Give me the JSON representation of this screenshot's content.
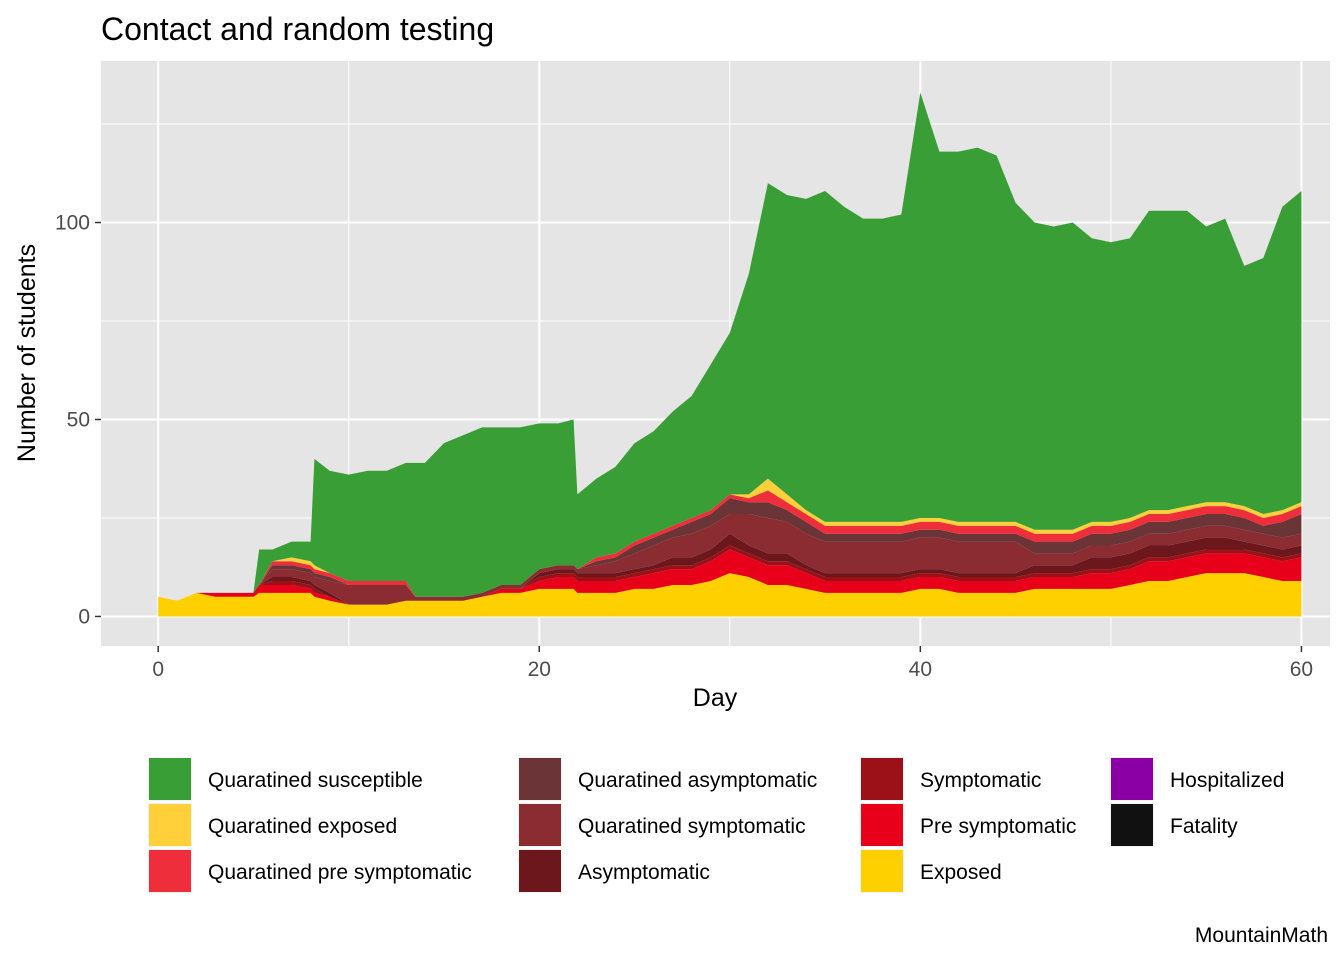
{
  "chart_data": {
    "type": "area",
    "stacked": true,
    "title": "Contact and random testing",
    "xlabel": "Day",
    "ylabel": "Number of students",
    "caption": "MountainMath",
    "xlim": [
      -3,
      61.5
    ],
    "ylim": [
      -7.5,
      141
    ],
    "x_ticks": [
      0,
      20,
      40,
      60
    ],
    "y_ticks": [
      0,
      50,
      100
    ],
    "x_minor_ticks": [
      10,
      30,
      50
    ],
    "y_minor_ticks": [
      25,
      75,
      125
    ],
    "grid": true,
    "legend_position": "bottom",
    "x": [
      0,
      1,
      2,
      3,
      4,
      5,
      5.3,
      6,
      7,
      8,
      8.2,
      9,
      10,
      11,
      12,
      13,
      13.5,
      14,
      15,
      16,
      17,
      18,
      19,
      20,
      21,
      21.8,
      22,
      23,
      24,
      25,
      26,
      27,
      28,
      29,
      30,
      31,
      32,
      33,
      34,
      35,
      36,
      37,
      38,
      39,
      40,
      41,
      42,
      43,
      44,
      45,
      46,
      47,
      48,
      49,
      50,
      51,
      52,
      53,
      54,
      55,
      56,
      57,
      58,
      59,
      60
    ],
    "series": [
      {
        "name": "Exposed",
        "color": "#FFD000",
        "values": [
          5,
          4,
          6,
          5,
          5,
          5,
          6,
          6,
          6,
          6,
          5,
          4,
          3,
          3,
          3,
          4,
          4,
          4,
          4,
          4,
          5,
          6,
          6,
          7,
          7,
          7,
          6,
          6,
          6,
          7,
          7,
          8,
          8,
          9,
          11,
          10,
          8,
          8,
          7,
          6,
          6,
          6,
          6,
          6,
          7,
          7,
          6,
          6,
          6,
          6,
          7,
          7,
          7,
          7,
          7,
          8,
          9,
          9,
          10,
          11,
          11,
          11,
          10,
          9,
          9
        ]
      },
      {
        "name": "Pre symptomatic",
        "color": "#E8001B",
        "values": [
          0,
          0,
          0,
          1,
          1,
          1,
          2,
          2,
          2,
          1,
          1,
          1,
          0,
          0,
          0,
          0,
          0,
          0,
          0,
          0,
          0,
          1,
          1,
          2,
          3,
          3,
          3,
          3,
          3,
          3,
          4,
          4,
          4,
          5,
          6,
          5,
          5,
          5,
          4,
          3,
          3,
          3,
          3,
          3,
          3,
          3,
          3,
          3,
          3,
          3,
          3,
          3,
          3,
          4,
          4,
          4,
          5,
          5,
          5,
          5,
          5,
          5,
          5,
          5,
          6
        ]
      },
      {
        "name": "Symptomatic",
        "color": "#9B1117",
        "values": [
          0,
          0,
          0,
          0,
          0,
          0,
          0,
          1,
          1,
          1,
          1,
          0,
          0,
          0,
          0,
          0,
          0,
          0,
          0,
          0,
          0,
          0,
          0,
          1,
          1,
          1,
          1,
          1,
          1,
          1,
          1,
          1,
          1,
          1,
          1,
          1,
          1,
          1,
          1,
          1,
          1,
          1,
          1,
          1,
          1,
          1,
          1,
          1,
          1,
          1,
          1,
          1,
          1,
          1,
          1,
          1,
          1,
          1,
          1,
          1,
          1,
          1,
          1,
          1,
          1
        ]
      },
      {
        "name": "Asymptomatic",
        "color": "#6B171C",
        "values": [
          0,
          0,
          0,
          0,
          0,
          0,
          0,
          1,
          1,
          1,
          1,
          1,
          0,
          0,
          0,
          0,
          0,
          0,
          0,
          0,
          0,
          0,
          0,
          1,
          1,
          1,
          1,
          1,
          1,
          1,
          1,
          2,
          2,
          2,
          3,
          2,
          2,
          2,
          1,
          1,
          1,
          1,
          1,
          1,
          1,
          1,
          1,
          1,
          1,
          1,
          2,
          2,
          2,
          3,
          3,
          3,
          3,
          3,
          3,
          3,
          3,
          2,
          2,
          2,
          2
        ]
      },
      {
        "name": "Quaratined symptomatic",
        "color": "#8B2C33",
        "values": [
          0,
          0,
          0,
          0,
          0,
          0,
          0,
          2,
          2,
          2,
          2,
          3,
          5,
          5,
          5,
          4,
          1,
          1,
          1,
          1,
          1,
          1,
          1,
          1,
          1,
          1,
          1,
          2,
          3,
          4,
          5,
          5,
          6,
          6,
          5,
          8,
          9,
          8,
          8,
          8,
          8,
          8,
          8,
          8,
          8,
          8,
          8,
          8,
          8,
          8,
          3,
          3,
          3,
          3,
          3,
          3,
          3,
          3,
          3,
          3,
          3,
          3,
          3,
          3,
          3
        ]
      },
      {
        "name": "Quaratined asymptomatic",
        "color": "#6B3436",
        "values": [
          0,
          0,
          0,
          0,
          0,
          0,
          0,
          1,
          1,
          1,
          1,
          1,
          0,
          0,
          0,
          0,
          0,
          0,
          0,
          0,
          0,
          0,
          0,
          0,
          0,
          0,
          0,
          1,
          1,
          2,
          2,
          2,
          3,
          3,
          4,
          3,
          4,
          3,
          3,
          2,
          2,
          2,
          2,
          2,
          2,
          2,
          2,
          2,
          2,
          2,
          3,
          3,
          3,
          3,
          3,
          3,
          3,
          3,
          3,
          3,
          3,
          3,
          2,
          4,
          5
        ]
      },
      {
        "name": "Quaratined pre symptomatic",
        "color": "#EE2E3A",
        "values": [
          0,
          0,
          0,
          0,
          0,
          0,
          0,
          1,
          1,
          1,
          1,
          1,
          1,
          1,
          1,
          1,
          0,
          0,
          0,
          0,
          0,
          0,
          0,
          0,
          0,
          0,
          0,
          1,
          1,
          1,
          1,
          1,
          1,
          1,
          1,
          1,
          3,
          2,
          2,
          2,
          2,
          2,
          2,
          2,
          2,
          2,
          2,
          2,
          2,
          2,
          2,
          2,
          2,
          2,
          2,
          2,
          2,
          2,
          2,
          2,
          2,
          2,
          2,
          2,
          2
        ]
      },
      {
        "name": "Quaratined exposed",
        "color": "#FFD039",
        "values": [
          0,
          0,
          0,
          0,
          0,
          0,
          0,
          0,
          1,
          1,
          1,
          0,
          0,
          0,
          0,
          0,
          0,
          0,
          0,
          0,
          0,
          0,
          0,
          0,
          0,
          0,
          0,
          0,
          0,
          0,
          0,
          0,
          0,
          0,
          0,
          1,
          3,
          2,
          1,
          1,
          1,
          1,
          1,
          1,
          1,
          1,
          1,
          1,
          1,
          1,
          1,
          1,
          1,
          1,
          1,
          1,
          1,
          1,
          1,
          1,
          1,
          1,
          1,
          1,
          1
        ]
      },
      {
        "name": "Quaratined susceptible",
        "color": "#3A9E37",
        "values": [
          0,
          0,
          0,
          0,
          0,
          0,
          9,
          3,
          4,
          5,
          27,
          26,
          27,
          28,
          28,
          30,
          34,
          34,
          39,
          41,
          42,
          40,
          40,
          37,
          36,
          37,
          19,
          20,
          22,
          25,
          26,
          29,
          31,
          37,
          41,
          56,
          75,
          76,
          79,
          84,
          80,
          77,
          77,
          78,
          108,
          93,
          94,
          95,
          93,
          81,
          78,
          77,
          78,
          72,
          71,
          71,
          76,
          76,
          75,
          70,
          72,
          61,
          65,
          77,
          79
        ]
      },
      {
        "name": "Hospitalized",
        "color": "#8B00A5",
        "values": [
          0,
          0,
          0,
          0,
          0,
          0,
          0,
          0,
          0,
          0,
          0,
          0,
          0,
          0,
          0,
          0,
          0,
          0,
          0,
          0,
          0,
          0,
          0,
          0,
          0,
          0,
          0,
          0,
          0,
          0,
          0,
          0,
          0,
          0,
          0,
          0,
          0,
          0,
          0,
          0,
          0,
          0,
          0,
          0,
          0,
          0,
          0,
          0,
          0,
          0,
          0,
          0,
          0,
          0,
          0,
          0,
          0,
          0,
          0,
          0,
          0,
          0,
          0,
          0,
          0
        ]
      },
      {
        "name": "Fatality",
        "color": "#111111",
        "values": [
          0,
          0,
          0,
          0,
          0,
          0,
          0,
          0,
          0,
          0,
          0,
          0,
          0,
          0,
          0,
          0,
          0,
          0,
          0,
          0,
          0,
          0,
          0,
          0,
          0,
          0,
          0,
          0,
          0,
          0,
          0,
          0,
          0,
          0,
          0,
          0,
          0,
          0,
          0,
          0,
          0,
          0,
          0,
          0,
          0,
          0,
          0,
          0,
          0,
          0,
          0,
          0,
          0,
          0,
          0,
          0,
          0,
          0,
          0,
          0,
          0,
          0,
          0,
          0,
          0
        ]
      }
    ],
    "legend": {
      "columns": [
        [
          "Quaratined susceptible",
          "Quaratined exposed",
          "Quaratined pre symptomatic"
        ],
        [
          "Quaratined asymptomatic",
          "Quaratined symptomatic",
          "Asymptomatic"
        ],
        [
          "Symptomatic",
          "Pre symptomatic",
          "Exposed"
        ],
        [
          "Hospitalized",
          "Fatality"
        ]
      ]
    }
  },
  "theme": {
    "panel_background": "#E5E5E5",
    "grid_color": "#FFFFFF",
    "tick_color": "#333333"
  }
}
